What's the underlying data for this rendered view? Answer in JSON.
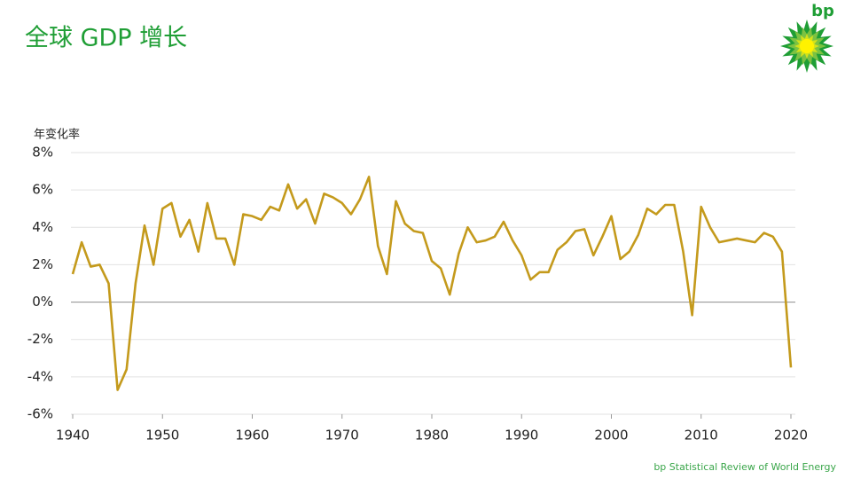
{
  "chart_data": {
    "type": "line",
    "title": "全球 GDP 增长",
    "y_label": "年变化率",
    "x": [
      1940,
      1941,
      1942,
      1943,
      1944,
      1945,
      1946,
      1947,
      1948,
      1949,
      1950,
      1951,
      1952,
      1953,
      1954,
      1955,
      1956,
      1957,
      1958,
      1959,
      1960,
      1961,
      1962,
      1963,
      1964,
      1965,
      1966,
      1967,
      1968,
      1969,
      1970,
      1971,
      1972,
      1973,
      1974,
      1975,
      1976,
      1977,
      1978,
      1979,
      1980,
      1981,
      1982,
      1983,
      1984,
      1985,
      1986,
      1987,
      1988,
      1989,
      1990,
      1991,
      1992,
      1993,
      1994,
      1995,
      1996,
      1997,
      1998,
      1999,
      2000,
      2001,
      2002,
      2003,
      2004,
      2005,
      2006,
      2007,
      2008,
      2009,
      2010,
      2011,
      2012,
      2013,
      2014,
      2015,
      2016,
      2017,
      2018,
      2019,
      2020
    ],
    "values": [
      1.5,
      3.2,
      1.9,
      2.0,
      1.0,
      -4.7,
      -3.6,
      1.0,
      4.1,
      2.0,
      5.0,
      5.3,
      3.5,
      4.4,
      2.7,
      5.3,
      3.4,
      3.4,
      2.0,
      4.7,
      4.6,
      4.4,
      5.1,
      4.9,
      6.3,
      5.0,
      5.5,
      4.2,
      5.8,
      5.6,
      5.3,
      4.7,
      5.5,
      6.7,
      3.0,
      1.5,
      5.4,
      4.2,
      3.8,
      3.7,
      2.2,
      1.8,
      0.4,
      2.6,
      4.0,
      3.2,
      3.3,
      3.5,
      4.3,
      3.3,
      2.5,
      1.2,
      1.6,
      1.6,
      2.8,
      3.2,
      3.8,
      3.9,
      2.5,
      3.5,
      4.6,
      2.3,
      2.7,
      3.6,
      5.0,
      4.7,
      5.2,
      5.2,
      2.7,
      -0.7,
      5.1,
      4.0,
      3.2,
      3.3,
      3.4,
      3.3,
      3.2,
      3.7,
      3.5,
      2.7,
      -3.5
    ],
    "color": "#c49a1c",
    "xlim": [
      1940,
      2020
    ],
    "xticks": [
      1940,
      1950,
      1960,
      1970,
      1980,
      1990,
      2000,
      2010,
      2020
    ],
    "ylim": [
      -6,
      8
    ],
    "yticks": [
      {
        "value": -6,
        "label": "-6%"
      },
      {
        "value": -4,
        "label": "-4%"
      },
      {
        "value": -2,
        "label": "-2%"
      },
      {
        "value": 0,
        "label": "0%"
      },
      {
        "value": 2,
        "label": "2%"
      },
      {
        "value": 4,
        "label": "4%"
      },
      {
        "value": 6,
        "label": "6%"
      },
      {
        "value": 8,
        "label": "8%"
      }
    ],
    "grid": true
  },
  "logo_text": "bp",
  "footer": "bp Statistical Review of World Energy"
}
